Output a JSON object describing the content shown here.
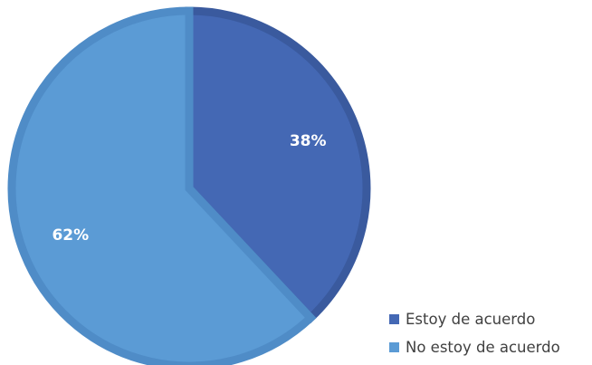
{
  "chart_data": {
    "type": "pie",
    "categories": [
      "Estoy de acuerdo",
      "No estoy de acuerdo"
    ],
    "values": [
      38,
      62
    ],
    "labels": [
      "38%",
      "62%"
    ],
    "start_angle_deg": 0,
    "direction": "clockwise",
    "colors": [
      "#4468B4",
      "#5B9BD5"
    ],
    "border_colors": [
      "#3A5A9E",
      "#4F8CC7"
    ],
    "legend_position": "bottom-right",
    "title": ""
  }
}
